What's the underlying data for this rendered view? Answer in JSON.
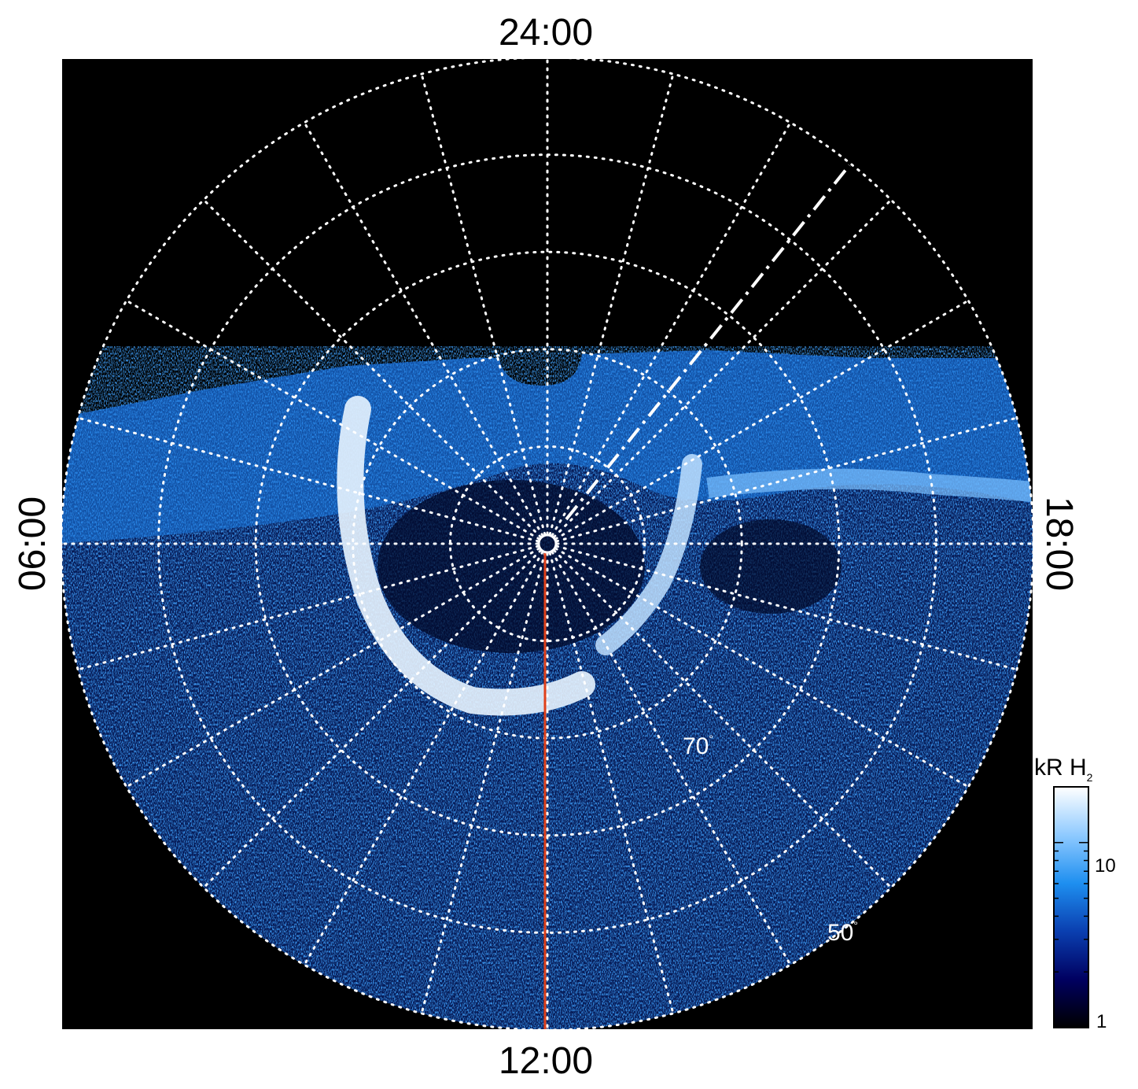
{
  "figure": {
    "projection": "polar",
    "local_time_labels": {
      "top": "24:00",
      "bottom": "12:00",
      "left": "06:00",
      "right": "18:00"
    },
    "latitude_labels": {
      "inner": "70",
      "outer": "50",
      "degree_symbol": "°"
    },
    "latitude_circles_deg": [
      80,
      70,
      60,
      50,
      40
    ],
    "local_time_meridian_step_hours": 1,
    "colors": {
      "background": "#000000",
      "grid": "#ffffff",
      "meridian_marker": "#e0401a",
      "dashed_marker": "#ffffff",
      "emission_low": "#000033",
      "emission_mid": "#1e8ff0",
      "emission_high": "#ffffff"
    }
  },
  "colorbar": {
    "title_main": "kR H",
    "title_sub": "2",
    "scale": "log",
    "range": [
      1,
      20
    ],
    "tick_labels": [
      "10",
      "1"
    ],
    "colors": [
      "#000000",
      "#000060",
      "#0a3fb0",
      "#1e8ff0",
      "#8fcaff",
      "#ffffff"
    ]
  }
}
